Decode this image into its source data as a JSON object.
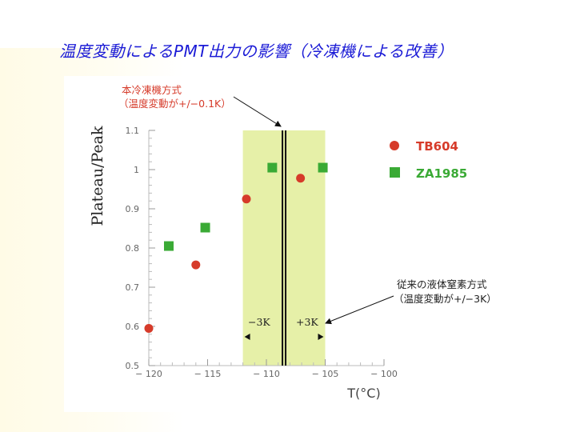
{
  "slide": {
    "title": "温度変動によるPMT出力の影響（冷凍機による改善）"
  },
  "chart_data": {
    "type": "scatter",
    "xlabel": "T(°C)",
    "ylabel": "Plateau/Peak",
    "xlim": [
      -120,
      -100
    ],
    "ylim": [
      0.5,
      1.1
    ],
    "x_ticks": [
      "-120",
      "-115",
      "-110",
      "-105",
      "-100"
    ],
    "y_ticks": [
      "0.5",
      "0.6",
      "0.7",
      "0.8",
      "0.9",
      "1",
      "1.1"
    ],
    "series": [
      {
        "name": "TB604",
        "marker": "circle",
        "color": "#d63b2a",
        "points": [
          [
            -120,
            0.595
          ],
          [
            -116,
            0.757
          ],
          [
            -111.7,
            0.925
          ],
          [
            -107.1,
            0.978
          ]
        ]
      },
      {
        "name": "ZA1985",
        "marker": "square",
        "color": "#3aaa35",
        "points": [
          [
            -118.3,
            0.805
          ],
          [
            -115.2,
            0.852
          ],
          [
            -109.5,
            1.005
          ],
          [
            -105.2,
            1.005
          ]
        ]
      }
    ],
    "bands": [
      {
        "from": -112,
        "to": -105,
        "color": "#e6f0a8"
      }
    ],
    "center_line_x": -108.5,
    "annotations": {
      "minus3k": "−3K",
      "plus3k": "+3K",
      "fridge_title": "本冷凍機方式",
      "fridge_detail": "（温度変動が+/−0.1K）",
      "ln2_title": "従来の液体窒素方式",
      "ln2_detail": "（温度変動が+/−3K）"
    }
  }
}
